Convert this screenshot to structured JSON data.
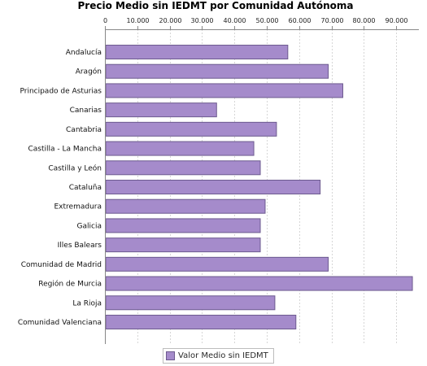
{
  "chart_data": {
    "type": "bar",
    "orientation": "horizontal",
    "title": "Precio Medio sin IEDMT por Comunidad Autónoma",
    "xlabel": "",
    "ylabel": "",
    "xlim": [
      0,
      97000
    ],
    "ticks": [
      0,
      10000,
      20000,
      30000,
      40000,
      50000,
      60000,
      70000,
      80000,
      90000
    ],
    "tick_labels": [
      "0",
      "10.000",
      "20.000",
      "30.000",
      "40.000",
      "50.000",
      "60.000",
      "70.000",
      "80.000",
      "90.000"
    ],
    "grid": true,
    "legend_position": "bottom",
    "categories": [
      "Andalucía",
      "Aragón",
      "Principado de Asturias",
      "Canarias",
      "Cantabria",
      "Castilla - La Mancha",
      "Castilla y León",
      "Cataluña",
      "Extremadura",
      "Galicia",
      "Illes Balears",
      "Comunidad de Madrid",
      "Región de Murcia",
      "La Rioja",
      "Comunidad Valenciana"
    ],
    "series": [
      {
        "name": "Valor Medio sin IEDMT",
        "color": "#a58bcb",
        "values": [
          56500,
          69000,
          73500,
          34500,
          53000,
          46000,
          48000,
          66500,
          49500,
          48000,
          48000,
          69000,
          95000,
          52500,
          59000
        ]
      }
    ]
  }
}
